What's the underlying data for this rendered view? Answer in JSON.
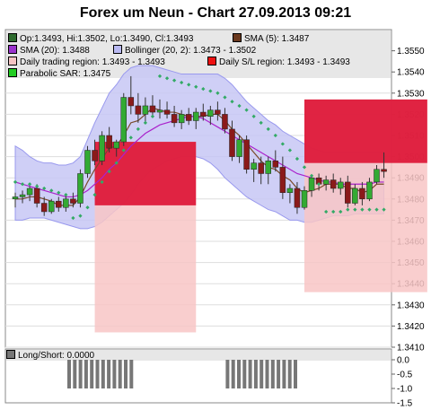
{
  "title": "Forex um Neun - Chart 27.09.2013 09:21",
  "legend": [
    {
      "label": "Op:1.3493, Hi:1.3502, Lo:1.3490, Cl:1.3493",
      "color": "#2e6b2e"
    },
    {
      "label": "SMA (5): 1.3487",
      "color": "#6b3a1f"
    },
    {
      "label": "SMA (20): 1.3488",
      "color": "#9933cc"
    },
    {
      "label": "Bollinger (20, 2): 1.3473 - 1.3502",
      "color": "#b9b9f2"
    },
    {
      "label": "Daily trading region: 1.3493 - 1.3493",
      "color": "#f6c4c4"
    },
    {
      "label": "Daily S/L region: 1.3493 - 1.3493",
      "color": "#ee1111"
    },
    {
      "label": "Parabolic SAR: 1.3475",
      "color": "#22cc22"
    }
  ],
  "lower_legend": {
    "label": "Long/Short: 0.0000",
    "color": "#777777"
  },
  "colors": {
    "bull": "#33aa33",
    "bear": "#8b1a1a",
    "sma5": "#7a4a2a",
    "sma20": "#aa22cc",
    "boll_fill": "#c7c7f5",
    "trade_region": "#f8c6c6",
    "sl_region": "#dd1133",
    "sar": "#33aa66",
    "bars": "#777777"
  },
  "chart_data": [
    {
      "type": "line",
      "title": "Forex um Neun - Chart 27.09.2013 09:21",
      "ylim": [
        1.341,
        1.356
      ],
      "yticks": [
        1.341,
        1.342,
        1.343,
        1.344,
        1.345,
        1.346,
        1.347,
        1.348,
        1.349,
        1.35,
        1.351,
        1.352,
        1.353,
        1.354,
        1.355
      ],
      "ytick_labels": [
        "1.3410",
        "1.3420",
        "1.3430",
        "1.3440",
        "1.3450",
        "1.3460",
        "1.3470",
        "1.3480",
        "1.3490",
        "1.3500",
        "1.3510",
        "1.3520",
        "1.3530",
        "1.3540",
        "1.3550"
      ],
      "grid": true,
      "candles": [
        {
          "o": 1.348,
          "h": 1.3483,
          "l": 1.3476,
          "c": 1.3481
        },
        {
          "o": 1.3481,
          "h": 1.3484,
          "l": 1.3478,
          "c": 1.3482
        },
        {
          "o": 1.3482,
          "h": 1.3486,
          "l": 1.3479,
          "c": 1.3485
        },
        {
          "o": 1.3485,
          "h": 1.3487,
          "l": 1.3476,
          "c": 1.3478
        },
        {
          "o": 1.3478,
          "h": 1.3481,
          "l": 1.3472,
          "c": 1.3474
        },
        {
          "o": 1.3474,
          "h": 1.348,
          "l": 1.3473,
          "c": 1.3479
        },
        {
          "o": 1.3479,
          "h": 1.3481,
          "l": 1.3474,
          "c": 1.3476
        },
        {
          "o": 1.3476,
          "h": 1.3482,
          "l": 1.3474,
          "c": 1.348
        },
        {
          "o": 1.348,
          "h": 1.3483,
          "l": 1.3476,
          "c": 1.3478
        },
        {
          "o": 1.3478,
          "h": 1.3494,
          "l": 1.3476,
          "c": 1.3492
        },
        {
          "o": 1.3492,
          "h": 1.3505,
          "l": 1.349,
          "c": 1.3503
        },
        {
          "o": 1.3503,
          "h": 1.3508,
          "l": 1.3496,
          "c": 1.3498
        },
        {
          "o": 1.3498,
          "h": 1.3512,
          "l": 1.3496,
          "c": 1.351
        },
        {
          "o": 1.351,
          "h": 1.3514,
          "l": 1.3502,
          "c": 1.3504
        },
        {
          "o": 1.3504,
          "h": 1.3508,
          "l": 1.35,
          "c": 1.3507
        },
        {
          "o": 1.3507,
          "h": 1.353,
          "l": 1.3505,
          "c": 1.3528
        },
        {
          "o": 1.3528,
          "h": 1.3538,
          "l": 1.352,
          "c": 1.3524
        },
        {
          "o": 1.3524,
          "h": 1.353,
          "l": 1.3516,
          "c": 1.352
        },
        {
          "o": 1.352,
          "h": 1.3528,
          "l": 1.3516,
          "c": 1.3524
        },
        {
          "o": 1.3524,
          "h": 1.3529,
          "l": 1.3519,
          "c": 1.3521
        },
        {
          "o": 1.3521,
          "h": 1.3527,
          "l": 1.3518,
          "c": 1.3522
        },
        {
          "o": 1.3522,
          "h": 1.3526,
          "l": 1.3518,
          "c": 1.352
        },
        {
          "o": 1.352,
          "h": 1.3524,
          "l": 1.3514,
          "c": 1.3516
        },
        {
          "o": 1.3516,
          "h": 1.3522,
          "l": 1.3513,
          "c": 1.352
        },
        {
          "o": 1.352,
          "h": 1.3523,
          "l": 1.3515,
          "c": 1.3517
        },
        {
          "o": 1.3517,
          "h": 1.3523,
          "l": 1.3513,
          "c": 1.3521
        },
        {
          "o": 1.3521,
          "h": 1.3525,
          "l": 1.3517,
          "c": 1.3519
        },
        {
          "o": 1.3519,
          "h": 1.3524,
          "l": 1.3515,
          "c": 1.3522
        },
        {
          "o": 1.3522,
          "h": 1.3526,
          "l": 1.3517,
          "c": 1.352
        },
        {
          "o": 1.352,
          "h": 1.3523,
          "l": 1.3511,
          "c": 1.3513
        },
        {
          "o": 1.3513,
          "h": 1.3517,
          "l": 1.3498,
          "c": 1.35
        },
        {
          "o": 1.35,
          "h": 1.351,
          "l": 1.3497,
          "c": 1.3508
        },
        {
          "o": 1.3508,
          "h": 1.351,
          "l": 1.3492,
          "c": 1.3494
        },
        {
          "o": 1.3494,
          "h": 1.3499,
          "l": 1.3488,
          "c": 1.3497
        },
        {
          "o": 1.3497,
          "h": 1.35,
          "l": 1.3487,
          "c": 1.3492
        },
        {
          "o": 1.3492,
          "h": 1.35,
          "l": 1.3487,
          "c": 1.3498
        },
        {
          "o": 1.3498,
          "h": 1.3503,
          "l": 1.3493,
          "c": 1.3495
        },
        {
          "o": 1.3495,
          "h": 1.35,
          "l": 1.348,
          "c": 1.3483
        },
        {
          "o": 1.3483,
          "h": 1.3487,
          "l": 1.3478,
          "c": 1.3485
        },
        {
          "o": 1.3485,
          "h": 1.3488,
          "l": 1.3473,
          "c": 1.3476
        },
        {
          "o": 1.3476,
          "h": 1.3486,
          "l": 1.3475,
          "c": 1.3484
        },
        {
          "o": 1.3484,
          "h": 1.3491,
          "l": 1.3481,
          "c": 1.349
        },
        {
          "o": 1.349,
          "h": 1.3492,
          "l": 1.3484,
          "c": 1.3487
        },
        {
          "o": 1.3487,
          "h": 1.3491,
          "l": 1.3484,
          "c": 1.3489
        },
        {
          "o": 1.3489,
          "h": 1.3492,
          "l": 1.3483,
          "c": 1.3485
        },
        {
          "o": 1.3485,
          "h": 1.349,
          "l": 1.3482,
          "c": 1.3488
        },
        {
          "o": 1.3488,
          "h": 1.3491,
          "l": 1.3476,
          "c": 1.3478
        },
        {
          "o": 1.3478,
          "h": 1.3487,
          "l": 1.3477,
          "c": 1.3485
        },
        {
          "o": 1.3485,
          "h": 1.3488,
          "l": 1.3477,
          "c": 1.348
        },
        {
          "o": 1.348,
          "h": 1.349,
          "l": 1.3479,
          "c": 1.3488
        },
        {
          "o": 1.3488,
          "h": 1.3496,
          "l": 1.3487,
          "c": 1.3494
        },
        {
          "o": 1.3494,
          "h": 1.3502,
          "l": 1.349,
          "c": 1.3493
        }
      ],
      "series": [
        {
          "name": "SMA (5)",
          "values": [
            1.348,
            1.348,
            1.3481,
            1.3481,
            1.348,
            1.3479,
            1.3477,
            1.3477,
            1.3477,
            1.3481,
            1.3488,
            1.3494,
            1.3499,
            1.3504,
            1.3505,
            1.351,
            1.3516,
            1.3517,
            1.352,
            1.3523,
            1.3522,
            1.3521,
            1.3521,
            1.352,
            1.3519,
            1.3519,
            1.3519,
            1.352,
            1.352,
            1.3517,
            1.3513,
            1.351,
            1.3506,
            1.3502,
            1.3498,
            1.3495,
            1.3494,
            1.3491,
            1.3489,
            1.3485,
            1.3483,
            1.3484,
            1.3485,
            1.3487,
            1.3487,
            1.3487,
            1.3485,
            1.3485,
            1.3483,
            1.3484,
            1.3487,
            1.3487
          ]
        },
        {
          "name": "SMA (20)",
          "values": [
            1.3488,
            1.3487,
            1.3486,
            1.3485,
            1.3484,
            1.3483,
            1.3482,
            1.3481,
            1.3481,
            1.3482,
            1.3484,
            1.3487,
            1.349,
            1.3494,
            1.3497,
            1.3501,
            1.3505,
            1.3508,
            1.3511,
            1.3513,
            1.3515,
            1.3516,
            1.3517,
            1.3518,
            1.3519,
            1.3519,
            1.3518,
            1.3516,
            1.3514,
            1.3512,
            1.351,
            1.3508,
            1.3506,
            1.3504,
            1.3502,
            1.35,
            1.3498,
            1.3496,
            1.3494,
            1.3492,
            1.3491,
            1.349,
            1.3489,
            1.3488,
            1.3488,
            1.3487,
            1.3487,
            1.3487,
            1.3487,
            1.3487,
            1.3488,
            1.3488
          ]
        },
        {
          "name": "Bollinger upper",
          "values": [
            1.3505,
            1.3503,
            1.35,
            1.3498,
            1.3497,
            1.3497,
            1.3496,
            1.3496,
            1.3497,
            1.35,
            1.3508,
            1.3516,
            1.3523,
            1.353,
            1.3534,
            1.3539,
            1.3542,
            1.3543,
            1.3543,
            1.3543,
            1.3542,
            1.3541,
            1.354,
            1.3539,
            1.3539,
            1.3539,
            1.3539,
            1.3539,
            1.3539,
            1.3537,
            1.3534,
            1.353,
            1.3526,
            1.3523,
            1.352,
            1.3517,
            1.3515,
            1.3512,
            1.351,
            1.3508,
            1.3506,
            1.3504,
            1.3503,
            1.3502,
            1.3502,
            1.3502,
            1.3502,
            1.3502,
            1.3502,
            1.3502,
            1.3502,
            1.3502
          ]
        },
        {
          "name": "Bollinger lower",
          "values": [
            1.347,
            1.347,
            1.3471,
            1.3471,
            1.3471,
            1.347,
            1.3469,
            1.3468,
            1.3467,
            1.3466,
            1.3466,
            1.3467,
            1.3469,
            1.3472,
            1.3475,
            1.3478,
            1.3482,
            1.3487,
            1.3491,
            1.3494,
            1.3496,
            1.3498,
            1.3499,
            1.35,
            1.35,
            1.35,
            1.3499,
            1.3497,
            1.3494,
            1.349,
            1.3487,
            1.3484,
            1.3481,
            1.3479,
            1.3477,
            1.3475,
            1.3474,
            1.3472,
            1.347,
            1.347,
            1.3469,
            1.3469,
            1.347,
            1.3471,
            1.3472,
            1.3472,
            1.3472,
            1.3473,
            1.3473,
            1.3473,
            1.3473,
            1.3473
          ]
        },
        {
          "name": "Parabolic SAR",
          "values": [
            1.3488,
            1.3487,
            1.3487,
            1.3486,
            1.3485,
            1.3484,
            1.3483,
            1.3482,
            1.3471,
            1.3472,
            1.3476,
            1.3482,
            1.3488,
            1.3493,
            1.3497,
            1.3503,
            1.3509,
            1.3513,
            1.3516,
            1.3519,
            1.3538,
            1.3537,
            1.3536,
            1.3535,
            1.3534,
            1.3533,
            1.3532,
            1.3531,
            1.353,
            1.3528,
            1.3526,
            1.3524,
            1.3522,
            1.3519,
            1.3516,
            1.3513,
            1.351,
            1.3506,
            1.3503,
            1.3499,
            1.3495,
            1.3491,
            1.3487,
            1.3474,
            1.3474,
            1.3474,
            1.3475,
            1.3475,
            1.3475,
            1.3475,
            1.3475,
            1.3475
          ]
        }
      ],
      "regions": [
        {
          "name": "Daily trading region",
          "from": 11,
          "to": 25,
          "low": 1.3417,
          "high": 1.3507
        },
        {
          "name": "Daily S/L region",
          "from": 11,
          "to": 25,
          "low": 1.3477,
          "high": 1.3507
        },
        {
          "name": "Daily trading region",
          "from": 40,
          "to": 57,
          "low": 1.3436,
          "high": 1.3527
        },
        {
          "name": "Daily S/L region",
          "from": 40,
          "to": 57,
          "low": 1.3497,
          "high": 1.3527
        }
      ]
    },
    {
      "type": "bar",
      "ylim": [
        -1.5,
        0.0
      ],
      "yticks": [
        0.0,
        -0.5,
        -1.0,
        -1.5
      ],
      "ytick_labels": [
        "0.0",
        "-0.5",
        "-1.0",
        "-1.5"
      ],
      "series": [
        {
          "name": "Long/Short",
          "values": [
            0,
            0,
            0,
            0,
            0,
            0,
            0,
            0,
            0,
            0,
            0,
            0,
            0,
            0,
            -1,
            -1,
            -1,
            -1,
            -1,
            -1,
            -1,
            -1,
            -1,
            -1,
            -1,
            -1,
            0,
            0,
            0,
            0,
            0,
            0,
            0,
            0,
            0,
            0,
            0,
            0,
            0,
            0,
            0,
            0,
            -1,
            -1,
            -1,
            -1,
            -1,
            -1,
            -1,
            -1,
            -1,
            -1,
            -1,
            -1,
            -1,
            0
          ]
        }
      ]
    }
  ]
}
